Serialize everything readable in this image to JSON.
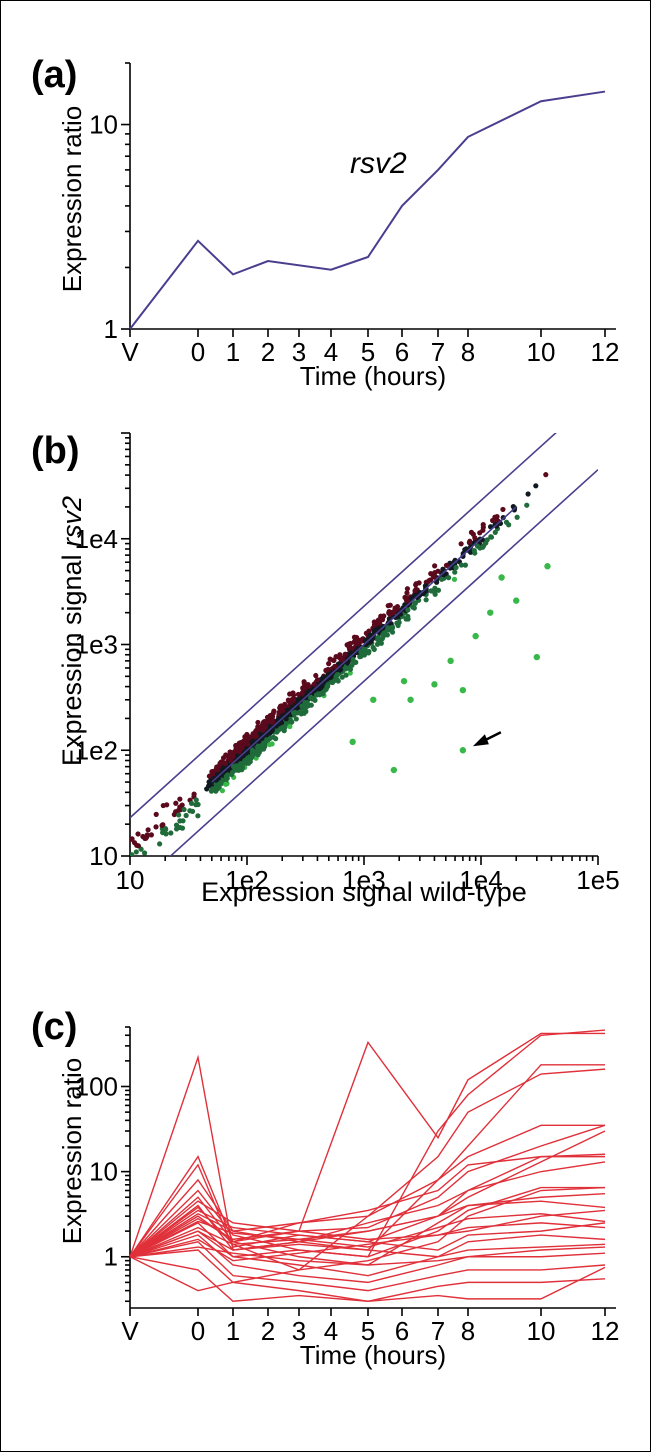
{
  "figure": {
    "panels": [
      {
        "id": "a",
        "label": "(a)"
      },
      {
        "id": "b",
        "label": "(b)"
      },
      {
        "id": "c",
        "label": "(c)"
      }
    ]
  },
  "chart_data": [
    {
      "panel": "(a)",
      "type": "line",
      "xlabel": "Time (hours)",
      "ylabel": "Expression ratio",
      "yscale": "log",
      "ylim": [
        1,
        20
      ],
      "x_tick_labels": [
        "V",
        "0",
        "1",
        "2",
        "3",
        "4",
        "5",
        "6",
        "7",
        "8",
        "10",
        "12"
      ],
      "y_tick_labels": [
        "1",
        "10"
      ],
      "x": [
        "V",
        "0",
        "1",
        "2",
        "4",
        "5",
        "6",
        "7",
        "8",
        "10",
        "12"
      ],
      "series": [
        {
          "name": "rsv2",
          "color": "#4a3f8f",
          "values": [
            1.0,
            2.7,
            1.85,
            2.15,
            1.95,
            2.25,
            4.0,
            6.0,
            8.7,
            13.0,
            14.5
          ]
        }
      ],
      "annotation": "rsv2"
    },
    {
      "panel": "(b)",
      "type": "scatter",
      "xlabel": "Expression signal wild-type",
      "ylabel_prefix": "Expression signal ",
      "ylabel_italic": "rsv2",
      "xscale": "log",
      "yscale": "log",
      "xlim": [
        10,
        100000
      ],
      "ylim": [
        10,
        100000
      ],
      "x_tick_labels": [
        "10",
        "1e2",
        "1e3",
        "1e4",
        "1e5"
      ],
      "y_tick_labels": [
        "10",
        "1e2",
        "1e3",
        "1e4"
      ],
      "fold_bands": [
        {
          "label": "upper",
          "fold": 2.3
        },
        {
          "label": "diagonal",
          "fold": 1
        },
        {
          "label": "lower",
          "fold": 0.45
        }
      ],
      "outliers": [
        [
          7000,
          100
        ],
        [
          1800,
          65
        ],
        [
          7000,
          370
        ],
        [
          30000,
          760
        ],
        [
          37000,
          5500
        ],
        [
          20000,
          2600
        ],
        [
          12000,
          2000
        ],
        [
          5500,
          700
        ],
        [
          4000,
          420
        ],
        [
          2500,
          300
        ],
        [
          1200,
          300
        ],
        [
          800,
          120
        ],
        [
          2200,
          450
        ],
        [
          15000,
          4300
        ],
        [
          9000,
          1200
        ]
      ],
      "highlight_point": [
        7000,
        100
      ],
      "colors": {
        "up": "#5a0a1c",
        "down": "#39b84a",
        "neutral": "#101820"
      }
    },
    {
      "panel": "(c)",
      "type": "line",
      "xlabel": "Time (hours)",
      "ylabel": "Expression ratio",
      "yscale": "log",
      "ylim": [
        0.25,
        500
      ],
      "x_tick_labels": [
        "V",
        "0",
        "1",
        "2",
        "3",
        "4",
        "5",
        "6",
        "7",
        "8",
        "10",
        "12"
      ],
      "y_tick_labels": [
        "1",
        "10",
        "100"
      ],
      "x": [
        "V",
        "0",
        "1",
        "3",
        "5",
        "7",
        "8",
        "10",
        "12"
      ],
      "color": "#e0303a",
      "series": [
        {
          "values": [
            1,
            220,
            1.2,
            1.5,
            2.0,
            3.0,
            6.0,
            15,
            16
          ]
        },
        {
          "values": [
            1,
            15,
            1.5,
            2.0,
            2.2,
            5.0,
            10,
            20,
            35
          ]
        },
        {
          "values": [
            1,
            12,
            1.3,
            1.8,
            1.5,
            3.0,
            5.0,
            13,
            30
          ]
        },
        {
          "values": [
            1,
            8,
            2.0,
            2.5,
            3.0,
            8.0,
            15,
            35,
            35
          ]
        },
        {
          "values": [
            1,
            6,
            1.8,
            1.2,
            1.0,
            2.0,
            3.5,
            6.5,
            6.5
          ]
        },
        {
          "values": [
            1,
            5,
            1.5,
            1.0,
            0.8,
            2.5,
            4.0,
            5.0,
            5.5
          ]
        },
        {
          "values": [
            1,
            4,
            1.2,
            1.5,
            2.5,
            4.0,
            6.0,
            10,
            13
          ]
        },
        {
          "values": [
            1,
            3.5,
            2.2,
            1.8,
            1.5,
            1.2,
            1.8,
            2.0,
            2.5
          ]
        },
        {
          "values": [
            1,
            3,
            1.5,
            2.5,
            3.5,
            6.0,
            12,
            15,
            15
          ]
        },
        {
          "values": [
            1,
            2.5,
            1.0,
            0.8,
            0.6,
            1.0,
            1.5,
            1.8,
            1.6
          ]
        },
        {
          "values": [
            1,
            2,
            1.2,
            1.4,
            1.2,
            1.0,
            1.2,
            1.3,
            1.4
          ]
        },
        {
          "values": [
            1,
            1.8,
            0.8,
            0.6,
            0.5,
            0.8,
            1.0,
            1.0,
            1.1
          ]
        },
        {
          "values": [
            1,
            1.5,
            0.6,
            0.5,
            0.4,
            0.6,
            0.7,
            0.7,
            0.8
          ]
        },
        {
          "values": [
            1,
            0.7,
            0.3,
            0.35,
            0.3,
            0.45,
            0.5,
            0.5,
            0.55
          ]
        },
        {
          "values": [
            1,
            0.4,
            0.5,
            0.4,
            0.3,
            0.35,
            0.32,
            0.32,
            0.75
          ]
        },
        {
          "values": [
            1,
            1.2,
            0.5,
            0.7,
            3.0,
            15,
            50,
            140,
            160
          ]
        },
        {
          "values": [
            1,
            2.0,
            1.0,
            1.2,
            1.0,
            30,
            80,
            400,
            460
          ]
        },
        {
          "values": [
            1,
            2.8,
            1.6,
            2.0,
            330,
            25,
            120,
            420,
            420
          ]
        },
        {
          "values": [
            1,
            3.2,
            2.0,
            1.5,
            1.2,
            8.0,
            20,
            180,
            180
          ]
        },
        {
          "values": [
            1,
            2.2,
            1.4,
            1.6,
            2.0,
            3.0,
            4.0,
            4.5,
            3.8
          ]
        },
        {
          "values": [
            1,
            1.6,
            0.9,
            1.1,
            1.4,
            1.8,
            2.2,
            2.5,
            2.2
          ]
        },
        {
          "values": [
            1,
            4.5,
            2.5,
            2.0,
            1.6,
            1.8,
            2.0,
            3.0,
            3.5
          ]
        },
        {
          "values": [
            1,
            3.8,
            1.4,
            0.7,
            0.9,
            1.5,
            3.0,
            6.0,
            6.5
          ]
        },
        {
          "values": [
            1,
            1.3,
            1.1,
            0.9,
            0.8,
            0.9,
            1.0,
            1.2,
            1.3
          ]
        },
        {
          "values": [
            1,
            2.6,
            1.9,
            1.6,
            1.3,
            2.2,
            2.8,
            3.2,
            2.6
          ]
        }
      ]
    }
  ]
}
